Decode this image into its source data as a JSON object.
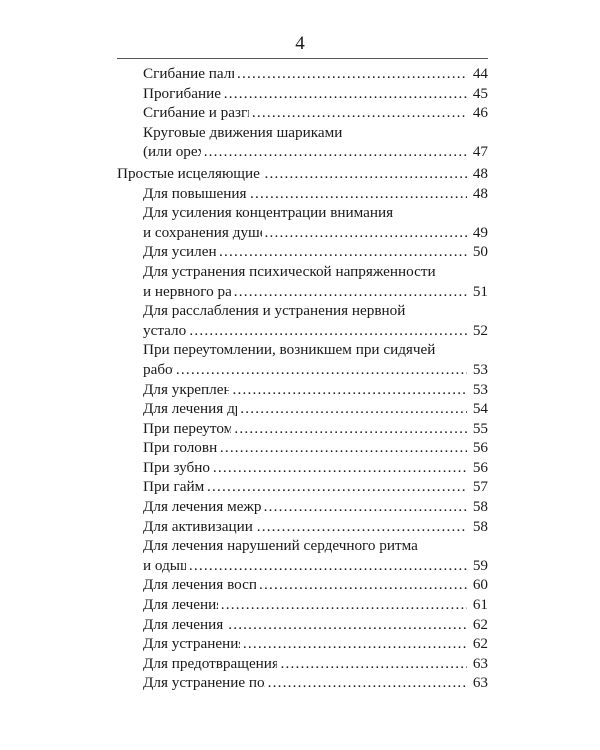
{
  "page_number": "4",
  "toc": [
    {
      "level": 2,
      "lines": [
        "Сгибание пальцев вперед"
      ],
      "page": "44"
    },
    {
      "level": 2,
      "lines": [
        "Прогибание пальцев"
      ],
      "page": "45"
    },
    {
      "level": 2,
      "lines": [
        "Сгибание и разгибание пальцев"
      ],
      "page": "46"
    },
    {
      "level": 2,
      "lines": [
        "Круговые движения шариками",
        "(или орехами)"
      ],
      "page": "47"
    },
    {
      "level": 1,
      "lines": [
        "Простые исцеляющие пальцевые упражнения"
      ],
      "page": "48"
    },
    {
      "level": 2,
      "lines": [
        "Для повышения выносливости"
      ],
      "page": "48"
    },
    {
      "level": 2,
      "lines": [
        "Для усиления концентрации внимания",
        "и сохранения душевного спокойствия"
      ],
      "page": "49"
    },
    {
      "level": 2,
      "lines": [
        "Для усиления воли"
      ],
      "page": "50"
    },
    {
      "level": 2,
      "lines": [
        "Для устранения психической напряженности",
        "и нервного раздражения"
      ],
      "page": "51"
    },
    {
      "level": 2,
      "lines": [
        "Для расслабления и устранения нервной",
        "усталости"
      ],
      "page": "52"
    },
    {
      "level": 2,
      "lines": [
        "При переутомлении, возникшем при сидячей",
        "работе"
      ],
      "page": "53"
    },
    {
      "level": 2,
      "lines": [
        "Для укрепления памяти"
      ],
      "page": "53"
    },
    {
      "level": 2,
      "lines": [
        "Для лечения дрожания рук"
      ],
      "page": "54"
    },
    {
      "level": 2,
      "lines": [
        "При переутомлении глаз"
      ],
      "page": "55"
    },
    {
      "level": 2,
      "lines": [
        "При головной боли"
      ],
      "page": "56"
    },
    {
      "level": 2,
      "lines": [
        "При зубной боли"
      ],
      "page": "56"
    },
    {
      "level": 2,
      "lines": [
        "При гайморите"
      ],
      "page": "57"
    },
    {
      "level": 2,
      "lines": [
        "Для лечения межреберной невралгии"
      ],
      "page": "58"
    },
    {
      "level": 2,
      "lines": [
        "Для активизации функции печени"
      ],
      "page": "58"
    },
    {
      "level": 2,
      "lines": [
        "Для лечения нарушений сердечного ритма",
        "и одышки"
      ],
      "page": "59"
    },
    {
      "level": 2,
      "lines": [
        "Для лечения воспаления миндалин"
      ],
      "page": "60"
    },
    {
      "level": 2,
      "lines": [
        "Для лечения запора"
      ],
      "page": "61"
    },
    {
      "level": 2,
      "lines": [
        "Для лечения геморроя"
      ],
      "page": "62"
    },
    {
      "level": 2,
      "lines": [
        "Для устранения потливости"
      ],
      "page": "62"
    },
    {
      "level": 2,
      "lines": [
        "Для предотвращения укачивания в транспорте"
      ],
      "page": "63"
    },
    {
      "level": 2,
      "lines": [
        "Для устранение похмельного синдрома"
      ],
      "page": "63"
    }
  ]
}
